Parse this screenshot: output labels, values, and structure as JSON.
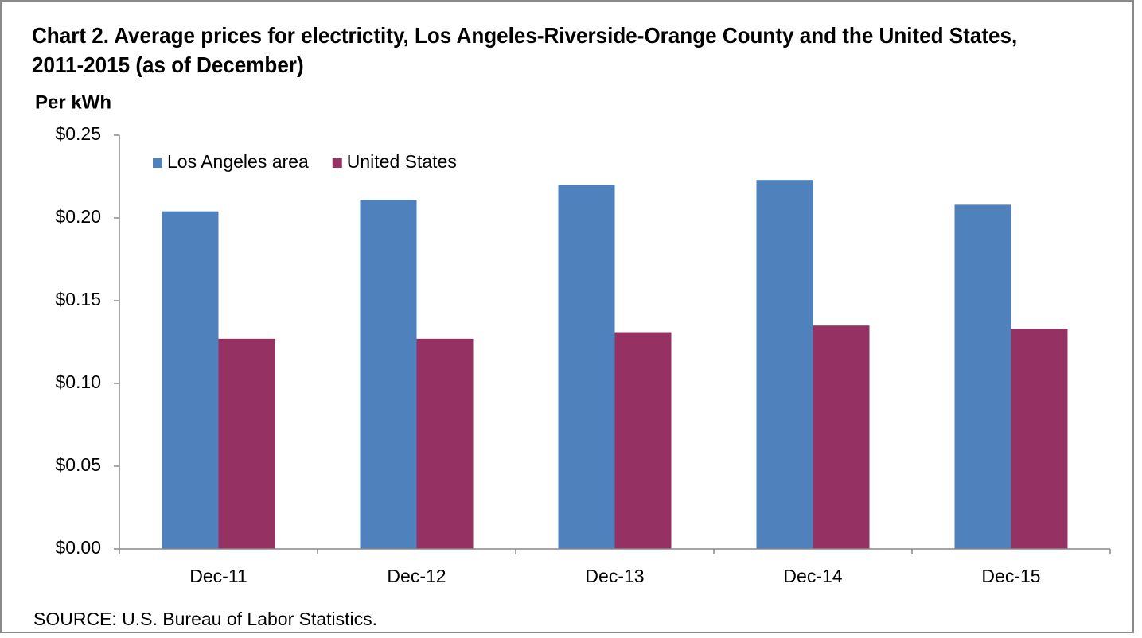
{
  "chart_data": {
    "type": "bar",
    "title": "Chart 2. Average prices for electrictity, Los Angeles-Riverside-Orange County and the United States, 2011-2015 (as of December)",
    "y_label": "Per kWh",
    "source": "SOURCE: U.S. Bureau of Labor Statistics.",
    "categories": [
      "Dec-11",
      "Dec-12",
      "Dec-13",
      "Dec-14",
      "Dec-15"
    ],
    "series": [
      {
        "name": "Los Angeles area",
        "color": "#4f81bd",
        "values": [
          0.204,
          0.211,
          0.22,
          0.223,
          0.208
        ]
      },
      {
        "name": "United States",
        "color": "#953163",
        "values": [
          0.127,
          0.127,
          0.131,
          0.135,
          0.133
        ]
      }
    ],
    "ylim": [
      0,
      0.25
    ],
    "yticks": [
      {
        "value": 0,
        "label": "$0.00"
      },
      {
        "value": 0.05,
        "label": "$0.05"
      },
      {
        "value": 0.1,
        "label": "$0.10"
      },
      {
        "value": 0.15,
        "label": "$0.15"
      },
      {
        "value": 0.2,
        "label": "$0.20"
      },
      {
        "value": 0.25,
        "label": "$0.25"
      }
    ],
    "legend": "top-left",
    "grid": false
  }
}
